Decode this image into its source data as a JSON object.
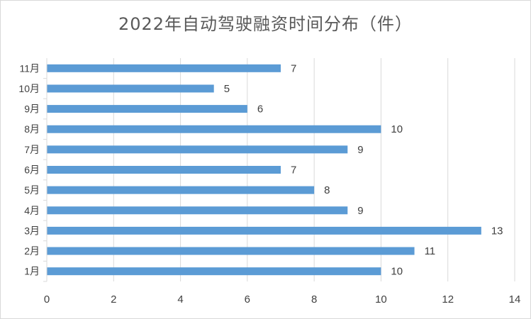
{
  "chart_data": {
    "type": "bar",
    "orientation": "horizontal",
    "title": "2022年自动驾驶融资时间分布（件）",
    "categories": [
      "1月",
      "2月",
      "3月",
      "4月",
      "5月",
      "6月",
      "7月",
      "8月",
      "9月",
      "10月",
      "11月"
    ],
    "series": [
      {
        "values": [
          10,
          11,
          13,
          9,
          8,
          7,
          9,
          10,
          6,
          5,
          7
        ]
      }
    ],
    "xlim": [
      0,
      14
    ],
    "xticks": [
      0,
      2,
      4,
      6,
      8,
      10,
      12,
      14
    ],
    "xtick_labels": [
      "0",
      "2",
      "4",
      "6",
      "8",
      "10",
      "12",
      "14"
    ],
    "xlabel": "",
    "ylabel": "",
    "grid": "vertical",
    "legend": "none",
    "colors": {
      "bar": "#5b9bd5",
      "grid": "#d9d9d9",
      "text": "#404040",
      "title": "#595959"
    }
  }
}
